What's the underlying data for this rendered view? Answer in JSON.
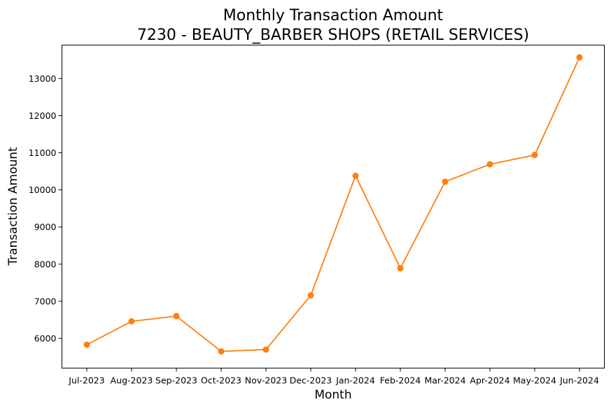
{
  "chart_data": {
    "type": "line",
    "title_line1": "Monthly Transaction Amount",
    "title_line2": "7230 - BEAUTY_BARBER SHOPS (RETAIL SERVICES)",
    "xlabel": "Month",
    "ylabel": "Transaction Amount",
    "categories": [
      "Jul-2023",
      "Aug-2023",
      "Sep-2023",
      "Oct-2023",
      "Nov-2023",
      "Dec-2023",
      "Jan-2024",
      "Feb-2024",
      "Mar-2024",
      "Apr-2024",
      "May-2024",
      "Jun-2024"
    ],
    "series": [
      {
        "values": [
          5830,
          6460,
          6600,
          5650,
          5700,
          7160,
          10380,
          7890,
          10220,
          10690,
          10940,
          13570
        ],
        "color": "#ff7f0e",
        "marker": "circle"
      }
    ],
    "ylim": [
      5200,
      13900
    ],
    "yticks": [
      6000,
      7000,
      8000,
      9000,
      10000,
      11000,
      12000,
      13000
    ],
    "grid": false,
    "legend": "none"
  }
}
